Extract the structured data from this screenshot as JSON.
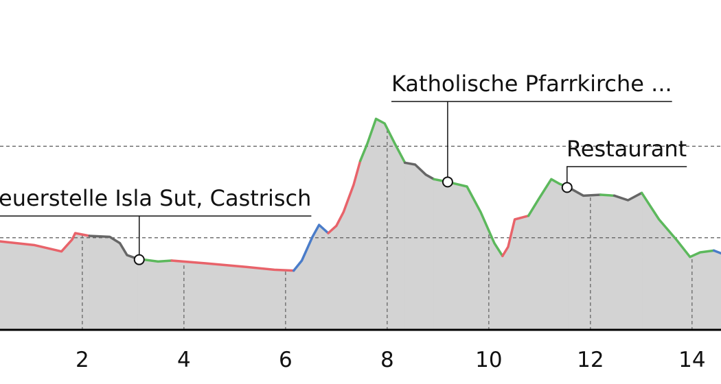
{
  "chart_data": {
    "type": "area",
    "xlim": [
      0.38,
      14.57
    ],
    "ylim": [
      600,
      960
    ],
    "xticks": [
      2,
      4,
      6,
      8,
      10,
      12,
      14
    ],
    "ygrid": [
      700,
      800
    ],
    "fill": "#d3d3d3",
    "series": [
      {
        "color": "#e8636a",
        "x": [
          0.38,
          1.05,
          1.59,
          1.8,
          1.86,
          2.14
        ],
        "values": [
          696,
          692,
          685,
          698,
          705,
          702
        ]
      },
      {
        "color": "#666666",
        "x": [
          2.14,
          2.54,
          2.74,
          2.88,
          3.08
        ],
        "values": [
          702,
          701,
          694,
          681,
          677
        ]
      },
      {
        "color": "#5cb85c",
        "x": [
          3.08,
          3.49,
          3.76
        ],
        "values": [
          677,
          674,
          675
        ]
      },
      {
        "color": "#e8636a",
        "x": [
          3.76,
          4.43,
          5.24,
          5.78,
          6.16
        ],
        "values": [
          675,
          672,
          668,
          665,
          664
        ]
      },
      {
        "color": "#4a7cc9",
        "x": [
          6.16,
          6.32,
          6.53,
          6.66,
          6.84
        ],
        "values": [
          664,
          675,
          701,
          714,
          705
        ]
      },
      {
        "color": "#e8636a",
        "x": [
          6.84,
          7.0,
          7.14,
          7.34,
          7.47
        ],
        "values": [
          705,
          713,
          728,
          758,
          784
        ]
      },
      {
        "color": "#5cb85c",
        "x": [
          7.47,
          7.61,
          7.78,
          7.95,
          8.15,
          8.35
        ],
        "values": [
          784,
          803,
          830,
          825,
          803,
          782
        ]
      },
      {
        "color": "#666666",
        "x": [
          8.35,
          8.55,
          8.76,
          8.92
        ],
        "values": [
          782,
          780,
          769,
          764
        ]
      },
      {
        "color": "#5cb85c",
        "x": [
          8.92,
          9.19,
          9.57,
          9.84,
          10.11,
          10.27
        ],
        "values": [
          764,
          761,
          756,
          728,
          694,
          680
        ]
      },
      {
        "color": "#e8636a",
        "x": [
          10.27,
          10.38,
          10.51,
          10.78
        ],
        "values": [
          680,
          690,
          720,
          724
        ]
      },
      {
        "color": "#5cb85c",
        "x": [
          10.78,
          10.99,
          11.23,
          11.39,
          11.57
        ],
        "values": [
          724,
          743,
          764,
          759,
          755
        ]
      },
      {
        "color": "#666666",
        "x": [
          11.57,
          11.86,
          12.2
        ],
        "values": [
          755,
          746,
          747
        ]
      },
      {
        "color": "#5cb85c",
        "x": [
          12.2,
          12.47
        ],
        "values": [
          747,
          746
        ]
      },
      {
        "color": "#666666",
        "x": [
          12.47,
          12.74,
          13.01
        ],
        "values": [
          746,
          741,
          749
        ]
      },
      {
        "color": "#5cb85c",
        "x": [
          13.01,
          13.35,
          13.69,
          13.96,
          14.16,
          14.43
        ],
        "values": [
          749,
          720,
          698,
          679,
          684,
          686
        ]
      },
      {
        "color": "#4a7cc9",
        "x": [
          14.43,
          14.57
        ],
        "values": [
          686,
          683
        ]
      }
    ],
    "annotations": [
      {
        "text": "euerstelle Isla Sut, Castrisch",
        "x": 3.12,
        "y": 676
      },
      {
        "text": "Katholische Pfarrkirche ...",
        "x": 9.19,
        "y": 761
      },
      {
        "text": "Restaurant",
        "x": 11.54,
        "y": 755
      }
    ]
  }
}
